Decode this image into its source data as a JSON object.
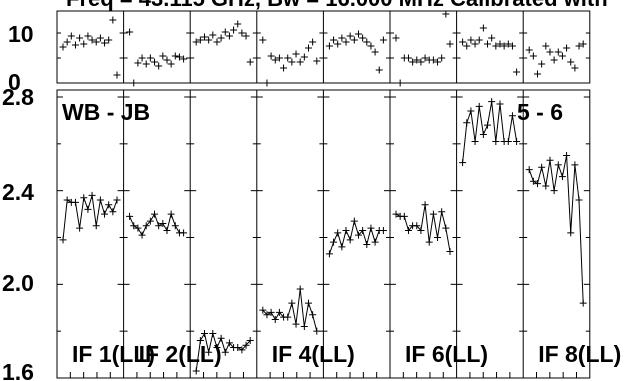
{
  "title": "Freq = 43.115 GHz, Bw = 16.000 MHz  Calibrated with",
  "chart_data": [
    {
      "type": "scatter",
      "ylim": [
        0,
        14
      ],
      "tick_labels": [
        "10",
        "0"
      ],
      "panels": [
        {
          "values": [
            7.2,
            8.2,
            9.4,
            7.6,
            9.0,
            7.8,
            9.4,
            8.6,
            8.2,
            9.0,
            8.0,
            8.6,
            12.6,
            1.6
          ]
        },
        {
          "values": [
            10.2,
            0.0,
            4.0,
            5.0,
            3.8,
            5.0,
            4.2,
            3.4,
            5.4,
            4.6,
            3.8,
            5.4,
            5.2,
            4.8
          ]
        },
        {
          "values": [
            8.2,
            8.6,
            9.2,
            8.6,
            9.6,
            8.2,
            9.0,
            10.2,
            9.4,
            10.6,
            11.8,
            10.0,
            9.4,
            4.2
          ]
        },
        {
          "values": [
            8.6,
            0.0,
            5.4,
            4.6,
            5.0,
            3.0,
            5.0,
            4.2,
            5.8,
            4.2,
            5.2,
            7.0,
            8.2,
            4.4
          ]
        },
        {
          "values": [
            7.4,
            8.6,
            7.8,
            9.0,
            8.2,
            9.4,
            8.6,
            9.8,
            9.0,
            8.2,
            7.4,
            6.2,
            2.6,
            8.6
          ]
        },
        {
          "values": [
            9.0,
            0.0,
            5.0,
            5.0,
            4.2,
            4.6,
            4.2,
            5.0,
            4.6,
            4.6,
            4.2,
            5.0,
            13.8,
            7.8
          ]
        },
        {
          "values": [
            8.2,
            7.4,
            8.6,
            7.8,
            8.6,
            11.0,
            7.8,
            9.0,
            7.4,
            7.8,
            7.4,
            7.8,
            7.4,
            2.2
          ]
        },
        {
          "values": [
            6.6,
            5.4,
            1.8,
            3.8,
            7.4,
            6.2,
            4.6,
            6.2,
            5.4,
            7.0,
            4.2,
            3.0,
            7.4,
            7.8
          ]
        }
      ]
    },
    {
      "type": "line",
      "ylim": [
        1.6,
        2.8
      ],
      "tick_labels": [
        "2.8",
        "2.4",
        "2.0",
        "1.6"
      ],
      "annotations": {
        "baseline": "WB - JB",
        "baseline_numbers": "5 - 6"
      },
      "panels": [
        {
          "label": "IF 1(LL)",
          "values": [
            2.19,
            2.36,
            2.35,
            2.35,
            2.24,
            2.37,
            2.32,
            2.38,
            2.25,
            2.36,
            2.3,
            2.34,
            2.31,
            2.36
          ]
        },
        {
          "label": "IF 2(LL)",
          "values": [
            2.29,
            2.25,
            2.24,
            2.21,
            2.25,
            2.27,
            2.3,
            2.25,
            2.26,
            2.23,
            2.3,
            2.25,
            2.22,
            2.22
          ]
        },
        {
          "values": [
            1.63,
            1.76,
            1.79,
            1.71,
            1.79,
            1.73,
            1.77,
            1.71,
            1.75,
            1.73,
            1.73,
            1.72,
            1.74,
            1.76
          ]
        },
        {
          "label": "IF 4(LL)",
          "values": [
            1.89,
            1.87,
            1.88,
            1.85,
            1.88,
            1.86,
            1.86,
            1.92,
            1.83,
            1.98,
            1.82,
            1.92,
            1.87,
            1.8
          ]
        },
        {
          "values": [
            2.13,
            2.18,
            2.22,
            2.16,
            2.23,
            2.19,
            2.27,
            2.21,
            2.23,
            2.17,
            2.24,
            2.18,
            2.23,
            2.23
          ]
        },
        {
          "label": "IF 6(LL)",
          "values": [
            2.3,
            2.29,
            2.29,
            2.23,
            2.25,
            2.25,
            2.23,
            2.34,
            2.18,
            2.3,
            2.2,
            2.31,
            2.24,
            2.14
          ]
        },
        {
          "values": [
            2.52,
            2.69,
            2.74,
            2.61,
            2.76,
            2.64,
            2.68,
            2.78,
            2.61,
            2.77,
            2.61,
            2.61,
            2.72,
            2.61
          ]
        },
        {
          "label": "IF 8(LL)",
          "values": [
            2.49,
            2.44,
            2.43,
            2.5,
            2.42,
            2.53,
            2.4,
            2.51,
            2.46,
            2.55,
            2.22,
            2.51,
            2.36,
            1.92
          ]
        }
      ]
    }
  ]
}
